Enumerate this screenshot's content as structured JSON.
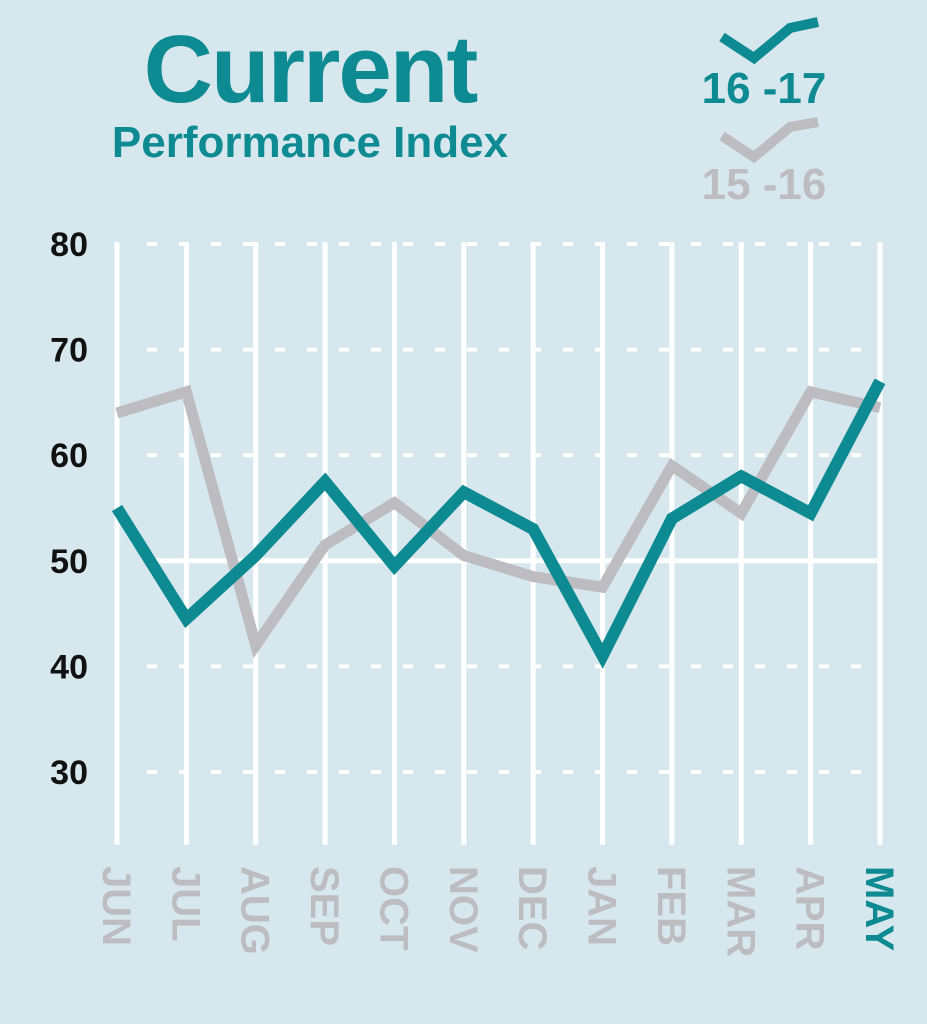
{
  "chart_data": {
    "type": "line",
    "title": "Current",
    "subtitle": "Performance Index",
    "categories": [
      "JUN",
      "JUL",
      "AUG",
      "SEP",
      "OCT",
      "NOV",
      "DEC",
      "JAN",
      "FEB",
      "MAR",
      "APR",
      "MAY"
    ],
    "highlight_category": "MAY",
    "ylim": [
      25,
      80
    ],
    "yticks": [
      "80",
      "70",
      "60",
      "50",
      "40",
      "30"
    ],
    "ytick_values": [
      80,
      70,
      60,
      50,
      40,
      30
    ],
    "grid": true,
    "legend_position": "top-right",
    "series": [
      {
        "name": "15 -16",
        "color": "#bdbcc0",
        "values": [
          64,
          66,
          42,
          51.5,
          55.5,
          50.5,
          48.5,
          47.5,
          59,
          54.5,
          66,
          64.5
        ]
      },
      {
        "name": "16 -17",
        "color": "#0e8a92",
        "values": [
          55,
          44.5,
          50.5,
          57.5,
          49.5,
          56.5,
          53,
          41,
          54,
          58,
          54.5,
          67
        ]
      }
    ]
  },
  "colors": {
    "background": "#d6e8ee",
    "accent": "#0e8a92",
    "muted": "#bdbcc0",
    "grid": "#ffffff"
  }
}
